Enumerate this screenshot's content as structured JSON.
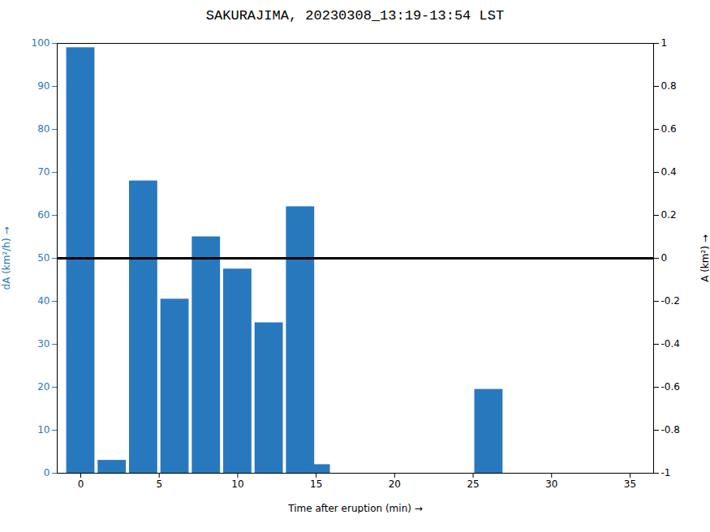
{
  "chart_data": {
    "type": "bar",
    "title": "SAKURAJIMA, 20230308_13:19-13:54 LST",
    "xlabel": "Time after eruption (min)",
    "ylabel": "dA (km²/h)",
    "y2label": "A (km²)",
    "x": [
      0,
      2,
      4,
      6,
      8,
      10,
      12,
      14,
      15,
      26
    ],
    "values": [
      99,
      3,
      68,
      40.5,
      55,
      47.5,
      35,
      62,
      2,
      19.5
    ],
    "color": "#2878BE",
    "reference_line": 50,
    "xlim": [
      -1.5,
      36.5
    ],
    "xticks": [
      0,
      5,
      10,
      15,
      20,
      25,
      30,
      35
    ],
    "ylim": [
      0,
      100
    ],
    "yticks": [
      0,
      10,
      20,
      30,
      40,
      50,
      60,
      70,
      80,
      90,
      100
    ],
    "y2lim": [
      -1,
      1
    ],
    "y2ticks": [
      -1,
      -0.8,
      -0.6,
      -0.4,
      -0.2,
      0,
      0.2,
      0.4,
      0.6,
      0.8,
      1
    ],
    "grid": false
  }
}
